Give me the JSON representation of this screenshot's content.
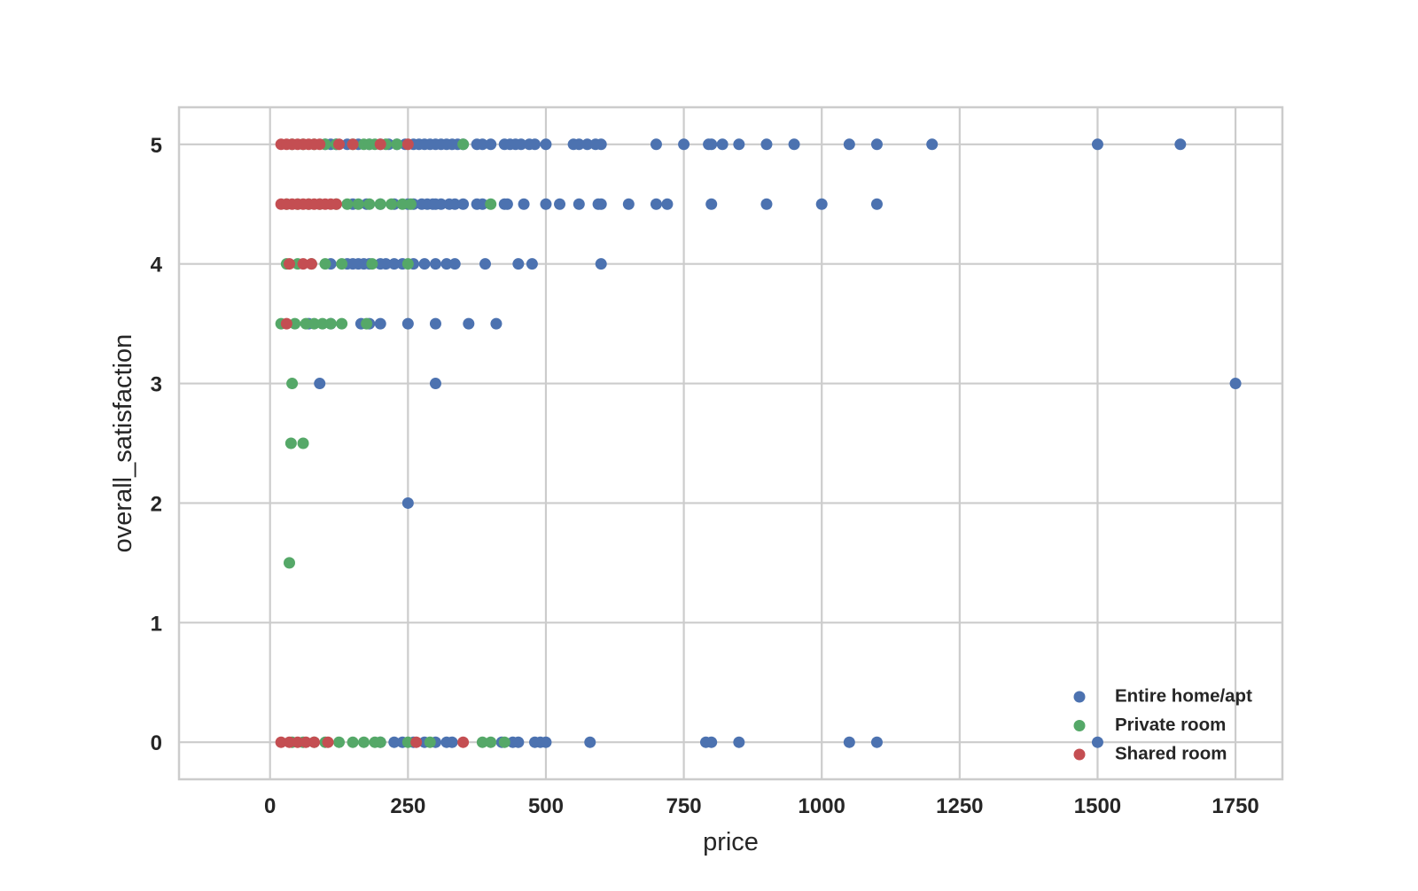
{
  "chart_data": {
    "type": "scatter",
    "title": "",
    "xlabel": "price",
    "ylabel": "overall_satisfaction",
    "xlim": [
      -165,
      1835
    ],
    "ylim": [
      -0.31,
      5.31
    ],
    "xticks": [
      0,
      250,
      500,
      750,
      1000,
      1250,
      1500,
      1750
    ],
    "yticks": [
      0,
      1,
      2,
      3,
      4,
      5
    ],
    "xtick_labels": [
      "0",
      "250",
      "500",
      "750",
      "1000",
      "1250",
      "1500",
      "1750"
    ],
    "ytick_labels": [
      "0",
      "1",
      "2",
      "3",
      "4",
      "5"
    ],
    "grid": true,
    "legend_position": "lower-right",
    "series": [
      {
        "name": "Entire home/apt",
        "color": "#4c72b0",
        "points": [
          [
            100,
            5
          ],
          [
            110,
            5
          ],
          [
            120,
            5
          ],
          [
            140,
            5
          ],
          [
            160,
            5
          ],
          [
            180,
            5
          ],
          [
            200,
            5
          ],
          [
            215,
            5
          ],
          [
            230,
            5
          ],
          [
            245,
            5
          ],
          [
            260,
            5
          ],
          [
            270,
            5
          ],
          [
            280,
            5
          ],
          [
            290,
            5
          ],
          [
            300,
            5
          ],
          [
            310,
            5
          ],
          [
            320,
            5
          ],
          [
            330,
            5
          ],
          [
            340,
            5
          ],
          [
            350,
            5
          ],
          [
            375,
            5
          ],
          [
            385,
            5
          ],
          [
            400,
            5
          ],
          [
            425,
            5
          ],
          [
            435,
            5
          ],
          [
            445,
            5
          ],
          [
            455,
            5
          ],
          [
            470,
            5
          ],
          [
            480,
            5
          ],
          [
            500,
            5
          ],
          [
            550,
            5
          ],
          [
            560,
            5
          ],
          [
            575,
            5
          ],
          [
            590,
            5
          ],
          [
            600,
            5
          ],
          [
            700,
            5
          ],
          [
            750,
            5
          ],
          [
            795,
            5
          ],
          [
            800,
            5
          ],
          [
            820,
            5
          ],
          [
            850,
            5
          ],
          [
            900,
            5
          ],
          [
            950,
            5
          ],
          [
            1050,
            5
          ],
          [
            1100,
            5
          ],
          [
            1200,
            5
          ],
          [
            1500,
            5
          ],
          [
            1650,
            5
          ],
          [
            150,
            4.5
          ],
          [
            175,
            4.5
          ],
          [
            200,
            4.5
          ],
          [
            225,
            4.5
          ],
          [
            250,
            4.5
          ],
          [
            260,
            4.5
          ],
          [
            275,
            4.5
          ],
          [
            285,
            4.5
          ],
          [
            295,
            4.5
          ],
          [
            300,
            4.5
          ],
          [
            310,
            4.5
          ],
          [
            325,
            4.5
          ],
          [
            335,
            4.5
          ],
          [
            350,
            4.5
          ],
          [
            375,
            4.5
          ],
          [
            385,
            4.5
          ],
          [
            425,
            4.5
          ],
          [
            430,
            4.5
          ],
          [
            460,
            4.5
          ],
          [
            500,
            4.5
          ],
          [
            525,
            4.5
          ],
          [
            560,
            4.5
          ],
          [
            595,
            4.5
          ],
          [
            600,
            4.5
          ],
          [
            650,
            4.5
          ],
          [
            700,
            4.5
          ],
          [
            720,
            4.5
          ],
          [
            800,
            4.5
          ],
          [
            900,
            4.5
          ],
          [
            1000,
            4.5
          ],
          [
            1100,
            4.5
          ],
          [
            110,
            4
          ],
          [
            140,
            4
          ],
          [
            150,
            4
          ],
          [
            160,
            4
          ],
          [
            170,
            4
          ],
          [
            180,
            4
          ],
          [
            200,
            4
          ],
          [
            210,
            4
          ],
          [
            225,
            4
          ],
          [
            240,
            4
          ],
          [
            260,
            4
          ],
          [
            280,
            4
          ],
          [
            300,
            4
          ],
          [
            320,
            4
          ],
          [
            335,
            4
          ],
          [
            390,
            4
          ],
          [
            450,
            4
          ],
          [
            475,
            4
          ],
          [
            600,
            4
          ],
          [
            70,
            3.5
          ],
          [
            110,
            3.5
          ],
          [
            165,
            3.5
          ],
          [
            180,
            3.5
          ],
          [
            200,
            3.5
          ],
          [
            250,
            3.5
          ],
          [
            300,
            3.5
          ],
          [
            360,
            3.5
          ],
          [
            410,
            3.5
          ],
          [
            90,
            3
          ],
          [
            300,
            3
          ],
          [
            1750,
            3
          ],
          [
            250,
            2
          ],
          [
            200,
            0
          ],
          [
            225,
            0
          ],
          [
            240,
            0
          ],
          [
            260,
            0
          ],
          [
            280,
            0
          ],
          [
            300,
            0
          ],
          [
            320,
            0
          ],
          [
            330,
            0
          ],
          [
            420,
            0
          ],
          [
            440,
            0
          ],
          [
            450,
            0
          ],
          [
            480,
            0
          ],
          [
            490,
            0
          ],
          [
            500,
            0
          ],
          [
            580,
            0
          ],
          [
            790,
            0
          ],
          [
            800,
            0
          ],
          [
            850,
            0
          ],
          [
            1050,
            0
          ],
          [
            1100,
            0
          ],
          [
            1500,
            0
          ]
        ]
      },
      {
        "name": "Private room",
        "color": "#55a868",
        "points": [
          [
            40,
            5
          ],
          [
            60,
            5
          ],
          [
            80,
            5
          ],
          [
            100,
            5
          ],
          [
            120,
            5
          ],
          [
            150,
            5
          ],
          [
            170,
            5
          ],
          [
            180,
            5
          ],
          [
            190,
            5
          ],
          [
            210,
            5
          ],
          [
            230,
            5
          ],
          [
            350,
            5
          ],
          [
            30,
            4.5
          ],
          [
            50,
            4.5
          ],
          [
            70,
            4.5
          ],
          [
            90,
            4.5
          ],
          [
            120,
            4.5
          ],
          [
            140,
            4.5
          ],
          [
            160,
            4.5
          ],
          [
            180,
            4.5
          ],
          [
            200,
            4.5
          ],
          [
            220,
            4.5
          ],
          [
            240,
            4.5
          ],
          [
            255,
            4.5
          ],
          [
            400,
            4.5
          ],
          [
            30,
            4
          ],
          [
            50,
            4
          ],
          [
            75,
            4
          ],
          [
            100,
            4
          ],
          [
            130,
            4
          ],
          [
            185,
            4
          ],
          [
            250,
            4
          ],
          [
            20,
            3.5
          ],
          [
            45,
            3.5
          ],
          [
            65,
            3.5
          ],
          [
            80,
            3.5
          ],
          [
            95,
            3.5
          ],
          [
            110,
            3.5
          ],
          [
            130,
            3.5
          ],
          [
            175,
            3.5
          ],
          [
            40,
            3
          ],
          [
            38,
            2.5
          ],
          [
            60,
            2.5
          ],
          [
            35,
            1.5
          ],
          [
            40,
            0
          ],
          [
            60,
            0
          ],
          [
            80,
            0
          ],
          [
            100,
            0
          ],
          [
            125,
            0
          ],
          [
            150,
            0
          ],
          [
            170,
            0
          ],
          [
            190,
            0
          ],
          [
            200,
            0
          ],
          [
            250,
            0
          ],
          [
            290,
            0
          ],
          [
            385,
            0
          ],
          [
            400,
            0
          ],
          [
            425,
            0
          ]
        ]
      },
      {
        "name": "Shared room",
        "color": "#c44e52",
        "points": [
          [
            20,
            5
          ],
          [
            30,
            5
          ],
          [
            40,
            5
          ],
          [
            50,
            5
          ],
          [
            60,
            5
          ],
          [
            70,
            5
          ],
          [
            80,
            5
          ],
          [
            90,
            5
          ],
          [
            125,
            5
          ],
          [
            150,
            5
          ],
          [
            200,
            5
          ],
          [
            250,
            5
          ],
          [
            20,
            4.5
          ],
          [
            30,
            4.5
          ],
          [
            40,
            4.5
          ],
          [
            50,
            4.5
          ],
          [
            60,
            4.5
          ],
          [
            70,
            4.5
          ],
          [
            80,
            4.5
          ],
          [
            90,
            4.5
          ],
          [
            100,
            4.5
          ],
          [
            110,
            4.5
          ],
          [
            120,
            4.5
          ],
          [
            35,
            4
          ],
          [
            60,
            4
          ],
          [
            75,
            4
          ],
          [
            30,
            3.5
          ],
          [
            20,
            0
          ],
          [
            35,
            0
          ],
          [
            50,
            0
          ],
          [
            65,
            0
          ],
          [
            80,
            0
          ],
          [
            105,
            0
          ],
          [
            265,
            0
          ],
          [
            350,
            0
          ]
        ]
      }
    ]
  }
}
